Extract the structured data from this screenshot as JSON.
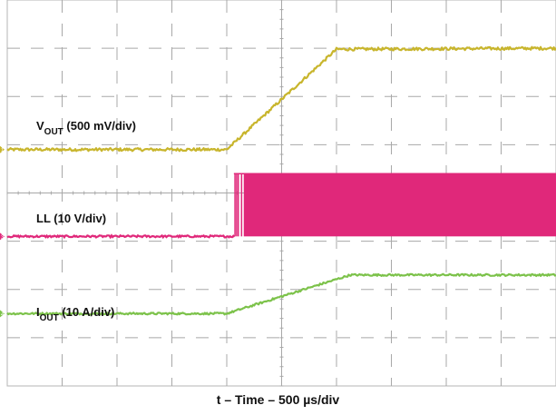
{
  "chart_data": {
    "type": "line",
    "xlabel": "t – Time – 500 µs/div",
    "x_divisions": 10,
    "y_divisions": 8,
    "grid": true,
    "series": [
      {
        "name": "V",
        "name_subscript": "OUT",
        "name_suffix": " (500 mV/div)",
        "color": "#C8B52C",
        "marker": "1",
        "x": [
          0,
          4.0,
          6.0,
          10
        ],
        "y": [
          4.9,
          4.9,
          6.98,
          7.0
        ],
        "noise": 0.03
      },
      {
        "name": "LL (10 V/div)",
        "color": "#E0287A",
        "marker": "3",
        "switching": true,
        "low": 3.1,
        "high": 4.4,
        "switch_start": 4.15,
        "noise": 0.02
      },
      {
        "name": "I",
        "name_subscript": "OUT",
        "name_suffix": " (10 A/div)",
        "color": "#7CC24A",
        "marker": "4",
        "x": [
          0,
          4.0,
          6.25,
          10
        ],
        "y": [
          1.5,
          1.5,
          2.3,
          2.3
        ],
        "noise": 0.02
      }
    ]
  }
}
